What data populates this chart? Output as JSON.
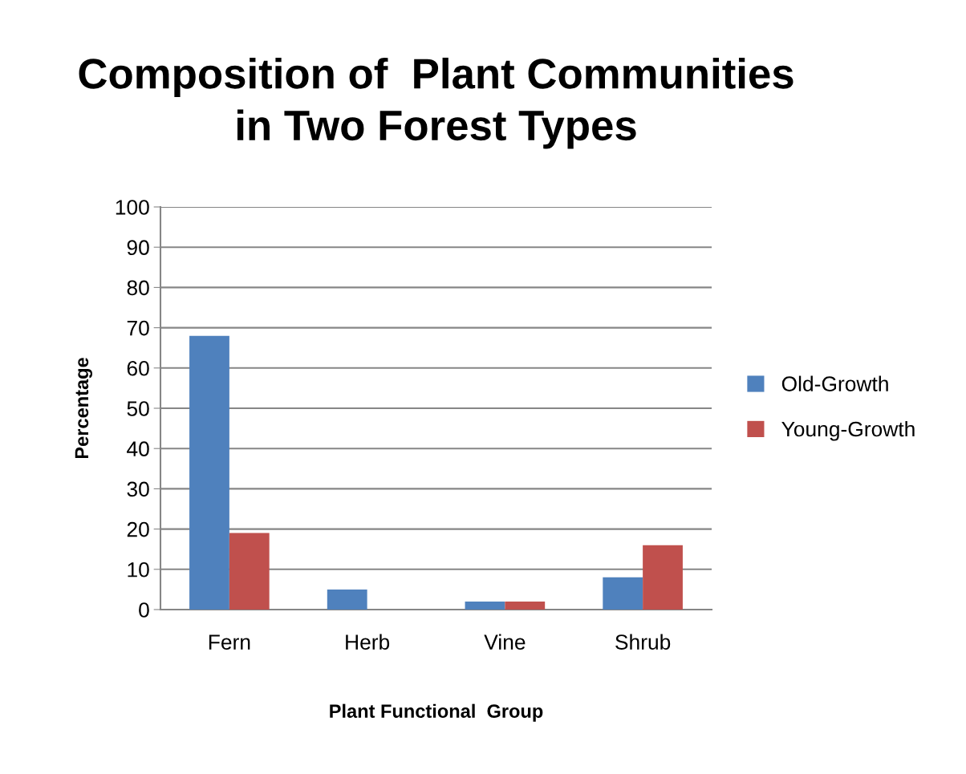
{
  "chart_data": {
    "type": "bar",
    "title": "Composition of  Plant Communities\nin Two Forest Types",
    "xlabel": "Plant Functional  Group",
    "ylabel": "Percentage",
    "categories": [
      "Fern",
      "Herb",
      "Vine",
      "Shrub"
    ],
    "series": [
      {
        "name": "Old-Growth",
        "color": "#4f81bd",
        "values": [
          68,
          5,
          2,
          8
        ]
      },
      {
        "name": "Young-Growth",
        "color": "#c0504d",
        "values": [
          19,
          0,
          2,
          16
        ]
      }
    ],
    "ylim": [
      0,
      100
    ],
    "yticks": [
      0,
      10,
      20,
      30,
      40,
      50,
      60,
      70,
      80,
      90,
      100
    ],
    "grid": "y",
    "legend": "right"
  }
}
